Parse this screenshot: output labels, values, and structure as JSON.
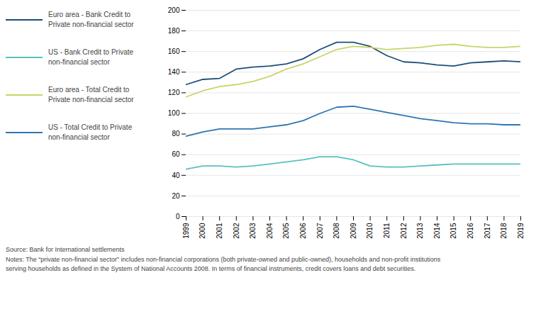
{
  "chart_data": {
    "type": "line",
    "x": [
      1999,
      2000,
      2001,
      2002,
      2003,
      2004,
      2005,
      2006,
      2007,
      2008,
      2009,
      2010,
      2011,
      2012,
      2013,
      2014,
      2015,
      2016,
      2017,
      2018,
      2019
    ],
    "xlim": [
      1999,
      2019
    ],
    "xticks": [
      1999,
      2000,
      2001,
      2002,
      2003,
      2004,
      2005,
      2006,
      2007,
      2008,
      2009,
      2010,
      2011,
      2012,
      2013,
      2014,
      2015,
      2016,
      2017,
      2018,
      2019
    ],
    "ylim": [
      0,
      200
    ],
    "yticks": [
      0,
      20,
      40,
      60,
      80,
      100,
      120,
      140,
      160,
      180,
      200
    ],
    "grid": true,
    "legend": "left",
    "series": [
      {
        "name": "Euro area - Bank Credit to\nPrivate non-financial sector",
        "color": "#1f4e79",
        "values": [
          128,
          133,
          134,
          143,
          145,
          146,
          148,
          153,
          162,
          169,
          169,
          165,
          156,
          150,
          149,
          147,
          146,
          149,
          150,
          151,
          150
        ]
      },
      {
        "name": "US - Bank Credit to Private\nnon-financial sector",
        "color": "#5bbfbf",
        "values": [
          46,
          49,
          49,
          48,
          49,
          51,
          53,
          55,
          58,
          58,
          55,
          49,
          48,
          48,
          49,
          50,
          51,
          51,
          51,
          51,
          51
        ]
      },
      {
        "name": "Euro area - Total Credit to\nPrivate non-financial sector",
        "color": "#c8d46b",
        "values": [
          116,
          122,
          126,
          128,
          131,
          136,
          143,
          148,
          155,
          162,
          165,
          164,
          162,
          163,
          164,
          166,
          167,
          165,
          164,
          164,
          165
        ]
      },
      {
        "name": "US - Total Credit to Private\nnon-financial sector",
        "color": "#2e75b6",
        "values": [
          78,
          82,
          85,
          85,
          85,
          87,
          89,
          93,
          100,
          106,
          107,
          104,
          101,
          98,
          95,
          93,
          91,
          90,
          90,
          89,
          89
        ]
      }
    ],
    "annotations": [
      "Source: Bank for International settlements",
      "Notes: The “private non-financial sector” includes non-financial corporations (both private-owned and public-owned), households and non-profit institutions",
      "serving households as defined in the System of National Accounts 2008. In terms of financial instruments, credit covers loans and debt securities."
    ]
  }
}
